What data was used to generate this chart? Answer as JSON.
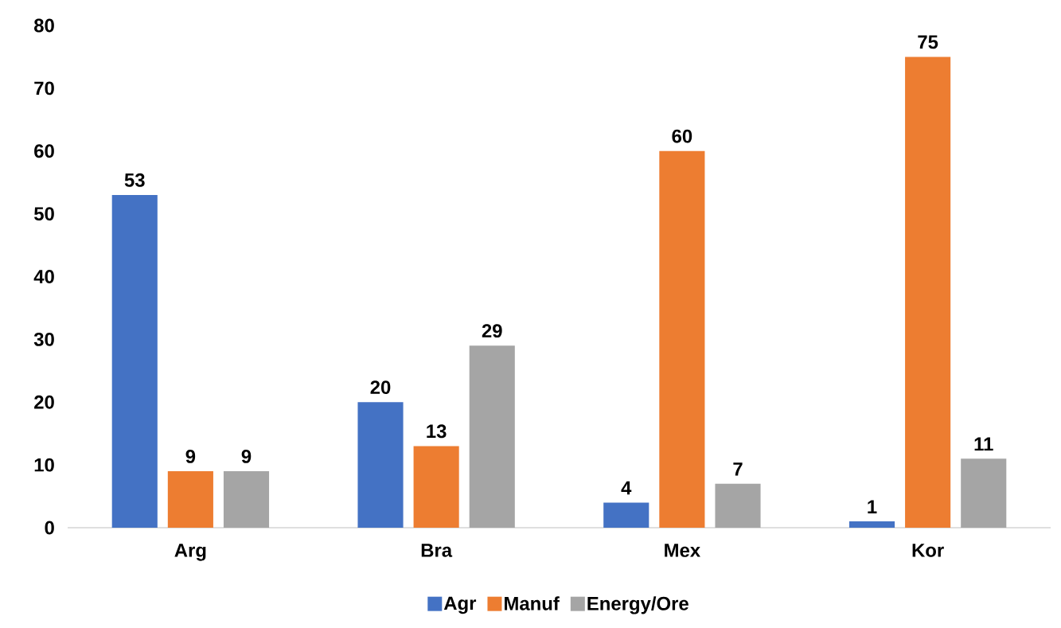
{
  "chart_data": {
    "type": "bar",
    "categories": [
      "Arg",
      "Bra",
      "Mex",
      "Kor"
    ],
    "series": [
      {
        "name": "Agr",
        "color": "#4472c4",
        "values": [
          53,
          20,
          4,
          1
        ]
      },
      {
        "name": "Manuf",
        "color": "#ed7d31",
        "values": [
          9,
          13,
          60,
          75
        ]
      },
      {
        "name": "Energy/Ore",
        "color": "#a5a5a5",
        "values": [
          9,
          29,
          7,
          11
        ]
      }
    ],
    "ylim": [
      0,
      80
    ],
    "yticks": [
      0,
      10,
      20,
      30,
      40,
      50,
      60,
      70,
      80
    ],
    "grid": false,
    "legend": "bottom",
    "data_labels": true
  }
}
